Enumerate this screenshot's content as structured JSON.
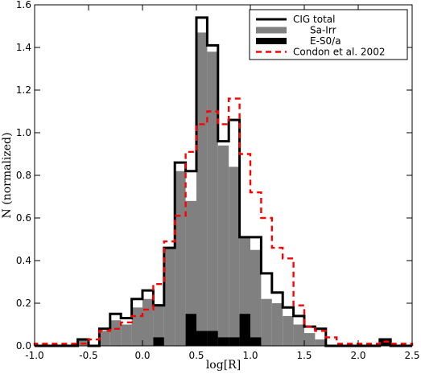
{
  "chart_data": {
    "type": "histogram",
    "xlabel": "log[R]",
    "ylabel": "N (normalized)",
    "xlim": [
      -1.0,
      2.5
    ],
    "ylim": [
      0.0,
      1.6
    ],
    "bin_width": 0.1,
    "bin_edges": [
      -1.0,
      -0.9,
      -0.8,
      -0.7,
      -0.6,
      -0.5,
      -0.4,
      -0.3,
      -0.2,
      -0.1,
      0.0,
      0.1,
      0.2,
      0.3,
      0.4,
      0.5,
      0.6,
      0.7,
      0.8,
      0.9,
      1.0,
      1.1,
      1.2,
      1.3,
      1.4,
      1.5,
      1.6,
      1.7,
      1.8,
      1.9,
      2.0,
      2.1,
      2.2,
      2.3,
      2.4,
      2.5
    ],
    "xticks": [
      -1.0,
      -0.5,
      0.0,
      0.5,
      1.0,
      1.5,
      2.0,
      2.5
    ],
    "yticks": [
      0.0,
      0.2,
      0.4,
      0.6,
      0.8,
      1.0,
      1.2,
      1.4,
      1.6
    ],
    "xtick_labels": [
      "-1.0",
      "-0.5",
      "0.0",
      "0.5",
      "1.0",
      "1.5",
      "2.0",
      "2.5"
    ],
    "ytick_labels": [
      "0.0",
      "0.2",
      "0.4",
      "0.6",
      "0.8",
      "1.0",
      "1.2",
      "1.4",
      "1.6"
    ],
    "legend_position": "top-right",
    "series": [
      {
        "name": "CIG total",
        "style": "step-outline",
        "color": "#000000",
        "values": [
          0,
          0,
          0,
          0,
          0.03,
          0,
          0.08,
          0.15,
          0.13,
          0.22,
          0.26,
          0.19,
          0.46,
          0.86,
          0.82,
          1.54,
          1.41,
          0.96,
          1.06,
          0.51,
          0.51,
          0.34,
          0.25,
          0.18,
          0.14,
          0.09,
          0.08,
          0,
          0,
          0,
          0,
          0,
          0.03,
          0,
          0
        ]
      },
      {
        "name": "Sa-Irr",
        "style": "filled",
        "color": "#808080",
        "values": [
          0,
          0,
          0,
          0,
          0.03,
          0,
          0.07,
          0.12,
          0.1,
          0.18,
          0.22,
          0.19,
          0.46,
          0.82,
          0.68,
          1.47,
          1.38,
          0.94,
          0.84,
          0.51,
          0.45,
          0.22,
          0.2,
          0.14,
          0.1,
          0.06,
          0.03,
          0,
          0,
          0,
          0,
          0,
          0.01,
          0,
          0
        ]
      },
      {
        "name": "E-S0/a",
        "style": "filled",
        "color": "#000000",
        "values": [
          0,
          0,
          0,
          0,
          0,
          0,
          0,
          0,
          0,
          0,
          0,
          0.04,
          0,
          0,
          0.15,
          0.07,
          0.07,
          0.04,
          0.04,
          0.15,
          0.04,
          0,
          0,
          0,
          0,
          0,
          0,
          0,
          0,
          0,
          0,
          0,
          0.03,
          0,
          0
        ]
      },
      {
        "name": "Condon et al. 2002",
        "style": "dashed-step",
        "color": "#ff0000",
        "values": [
          0.01,
          0.01,
          0.01,
          0.01,
          0.01,
          0.03,
          0.07,
          0.08,
          0.11,
          0.14,
          0.17,
          0.29,
          0.49,
          0.61,
          0.91,
          1.04,
          1.1,
          1.04,
          1.16,
          0.9,
          0.72,
          0.6,
          0.46,
          0.41,
          0.19,
          0.09,
          0.07,
          0.04,
          0.01,
          0.01,
          0.01,
          0.01,
          0.02,
          0.01,
          0.01
        ]
      }
    ]
  }
}
